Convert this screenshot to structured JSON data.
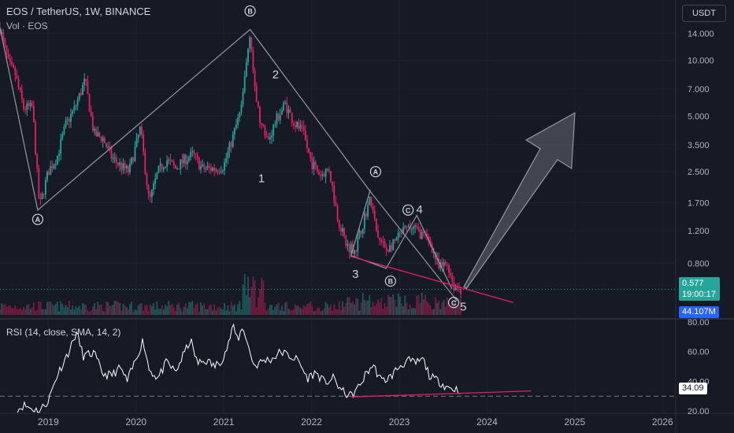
{
  "header": {
    "symbol_line": "EOS / TetherUS, 1W, BINANCE",
    "volume_label": "Vol · EOS",
    "currency": "USDT"
  },
  "rsi_header": "RSI (14, close, SMA, 14, 2)",
  "badges": {
    "price": "0.577",
    "countdown": "19:00:17",
    "volume": "44.107M",
    "rsi": "34.09"
  },
  "colors": {
    "up": "#26a69a",
    "down": "#e91e63",
    "accent": "#e91e63",
    "background": "#161a25",
    "price_badge": "#26a69a",
    "rsi_badge": "#ffffff"
  },
  "chart_data": [
    {
      "type": "candlestick",
      "title": "EOS / TetherUS, 1W, BINANCE",
      "scale": "log",
      "y_ticks": [
        "14.000",
        "10.000",
        "7.000",
        "5.000",
        "3.500",
        "2.500",
        "1.700",
        "1.200",
        "0.800"
      ],
      "y_tick_values": [
        14,
        10,
        7,
        5,
        3.5,
        2.5,
        1.7,
        1.2,
        0.8
      ],
      "x_ticks": [
        "2019",
        "2020",
        "2021",
        "2022",
        "2023",
        "2024",
        "2025",
        "2026"
      ],
      "x_tick_values": [
        2019.0,
        2020.0,
        2021.0,
        2022.0,
        2023.0,
        2024.0,
        2025.0,
        2026.0
      ],
      "x_range": [
        2018.45,
        2026.15
      ],
      "y_range": [
        0.42,
        20
      ],
      "last_price": 0.577,
      "price_path": [
        [
          2018.45,
          15.0
        ],
        [
          2018.55,
          9.5
        ],
        [
          2018.62,
          8.5
        ],
        [
          2018.72,
          5.5
        ],
        [
          2018.82,
          5.6
        ],
        [
          2018.9,
          1.6
        ],
        [
          2019.0,
          2.5
        ],
        [
          2019.1,
          3.0
        ],
        [
          2019.2,
          4.5
        ],
        [
          2019.3,
          5.5
        ],
        [
          2019.42,
          7.8
        ],
        [
          2019.52,
          4.0
        ],
        [
          2019.62,
          3.8
        ],
        [
          2019.72,
          3.0
        ],
        [
          2019.82,
          2.7
        ],
        [
          2019.92,
          2.5
        ],
        [
          2020.05,
          4.3
        ],
        [
          2020.15,
          1.7
        ],
        [
          2020.25,
          2.5
        ],
        [
          2020.35,
          2.9
        ],
        [
          2020.45,
          2.6
        ],
        [
          2020.55,
          2.9
        ],
        [
          2020.65,
          3.1
        ],
        [
          2020.75,
          2.6
        ],
        [
          2020.85,
          2.6
        ],
        [
          2020.92,
          2.6
        ],
        [
          2021.0,
          2.7
        ],
        [
          2021.1,
          3.8
        ],
        [
          2021.2,
          5.5
        ],
        [
          2021.3,
          14.7
        ],
        [
          2021.35,
          7.0
        ],
        [
          2021.42,
          4.5
        ],
        [
          2021.5,
          3.6
        ],
        [
          2021.6,
          4.8
        ],
        [
          2021.7,
          5.8
        ],
        [
          2021.8,
          4.6
        ],
        [
          2021.9,
          4.1
        ],
        [
          2022.0,
          2.8
        ],
        [
          2022.1,
          2.4
        ],
        [
          2022.2,
          2.6
        ],
        [
          2022.3,
          1.4
        ],
        [
          2022.4,
          1.0
        ],
        [
          2022.5,
          0.95
        ],
        [
          2022.6,
          1.4
        ],
        [
          2022.67,
          1.8
        ],
        [
          2022.75,
          1.1
        ],
        [
          2022.85,
          0.95
        ],
        [
          2022.92,
          1.0
        ],
        [
          2023.05,
          1.2
        ],
        [
          2023.15,
          1.25
        ],
        [
          2023.25,
          1.15
        ],
        [
          2023.35,
          1.05
        ],
        [
          2023.45,
          0.75
        ],
        [
          2023.55,
          0.8
        ],
        [
          2023.62,
          0.6
        ],
        [
          2023.7,
          0.577
        ]
      ],
      "elliott_labels": [
        {
          "text": "A",
          "x": 2018.88,
          "y": 1.38,
          "circled": true
        },
        {
          "text": "B",
          "x": 2021.3,
          "y": 18.5,
          "circled": true
        },
        {
          "text": "2",
          "x": 2021.59,
          "y": 8.4,
          "circled": false
        },
        {
          "text": "1",
          "x": 2021.43,
          "y": 2.3,
          "circled": false
        },
        {
          "text": "A",
          "x": 2022.73,
          "y": 2.5,
          "circled": true
        },
        {
          "text": "C",
          "x": 2023.1,
          "y": 1.55,
          "circled": true
        },
        {
          "text": "4",
          "x": 2023.23,
          "y": 1.56,
          "circled": false
        },
        {
          "text": "3",
          "x": 2022.5,
          "y": 0.7,
          "circled": false
        },
        {
          "text": "B",
          "x": 2022.9,
          "y": 0.64,
          "circled": true
        },
        {
          "text": "C",
          "x": 2023.62,
          "y": 0.49,
          "circled": true
        },
        {
          "text": "5",
          "x": 2023.73,
          "y": 0.465,
          "circled": false
        }
      ],
      "abc_lines": [
        [
          [
            2018.45,
            15.0
          ],
          [
            2018.88,
            1.55
          ],
          [
            2021.3,
            14.7
          ],
          [
            2022.67,
            1.95
          ],
          [
            2023.66,
            0.5
          ]
        ],
        [
          [
            2022.45,
            0.88
          ],
          [
            2022.85,
            0.75
          ],
          [
            2023.2,
            1.45
          ],
          [
            2023.6,
            0.58
          ]
        ],
        [
          [
            2022.45,
            0.88
          ],
          [
            2022.67,
            2.0
          ]
        ]
      ],
      "support_line": [
        [
          2022.45,
          0.87
        ],
        [
          2024.3,
          0.49
        ]
      ],
      "arrow": {
        "from": [
          2023.75,
          0.59
        ],
        "to": [
          2025.0,
          5.2
        ]
      }
    },
    {
      "type": "line",
      "title": "RSI (14, close, SMA, 14, 2)",
      "y_ticks": [
        "80.00",
        "60.00",
        "40.00",
        "20.00"
      ],
      "y_tick_values": [
        80,
        60,
        40,
        20
      ],
      "y_range": [
        19,
        82
      ],
      "last_value": 34.09,
      "rsi_path": [
        [
          2018.65,
          21
        ],
        [
          2018.72,
          24
        ],
        [
          2018.8,
          22
        ],
        [
          2018.9,
          20
        ],
        [
          2019.0,
          27
        ],
        [
          2019.1,
          44
        ],
        [
          2019.25,
          62
        ],
        [
          2019.32,
          73
        ],
        [
          2019.4,
          57
        ],
        [
          2019.52,
          59
        ],
        [
          2019.62,
          45
        ],
        [
          2019.72,
          44
        ],
        [
          2019.82,
          49
        ],
        [
          2019.9,
          40
        ],
        [
          2020.0,
          55
        ],
        [
          2020.08,
          68
        ],
        [
          2020.15,
          48
        ],
        [
          2020.25,
          42
        ],
        [
          2020.35,
          53
        ],
        [
          2020.45,
          46
        ],
        [
          2020.55,
          59
        ],
        [
          2020.62,
          68
        ],
        [
          2020.7,
          52
        ],
        [
          2020.8,
          54
        ],
        [
          2020.9,
          50
        ],
        [
          2020.98,
          55
        ],
        [
          2021.05,
          64
        ],
        [
          2021.1,
          77
        ],
        [
          2021.16,
          68
        ],
        [
          2021.22,
          77
        ],
        [
          2021.28,
          63
        ],
        [
          2021.35,
          50
        ],
        [
          2021.45,
          54
        ],
        [
          2021.55,
          55
        ],
        [
          2021.65,
          60
        ],
        [
          2021.75,
          57
        ],
        [
          2021.85,
          54
        ],
        [
          2021.95,
          42
        ],
        [
          2022.05,
          46
        ],
        [
          2022.15,
          39
        ],
        [
          2022.25,
          42
        ],
        [
          2022.35,
          33
        ],
        [
          2022.45,
          30
        ],
        [
          2022.55,
          37
        ],
        [
          2022.62,
          45
        ],
        [
          2022.7,
          51
        ],
        [
          2022.8,
          40
        ],
        [
          2022.9,
          43
        ],
        [
          2023.0,
          50
        ],
        [
          2023.1,
          54
        ],
        [
          2023.18,
          52
        ],
        [
          2023.27,
          55
        ],
        [
          2023.35,
          43
        ],
        [
          2023.45,
          40
        ],
        [
          2023.55,
          36
        ],
        [
          2023.62,
          35
        ],
        [
          2023.7,
          34.09
        ]
      ],
      "divergence_line": [
        [
          2022.45,
          29.5
        ],
        [
          2024.5,
          33.5
        ]
      ],
      "dashed_level": 30
    }
  ]
}
